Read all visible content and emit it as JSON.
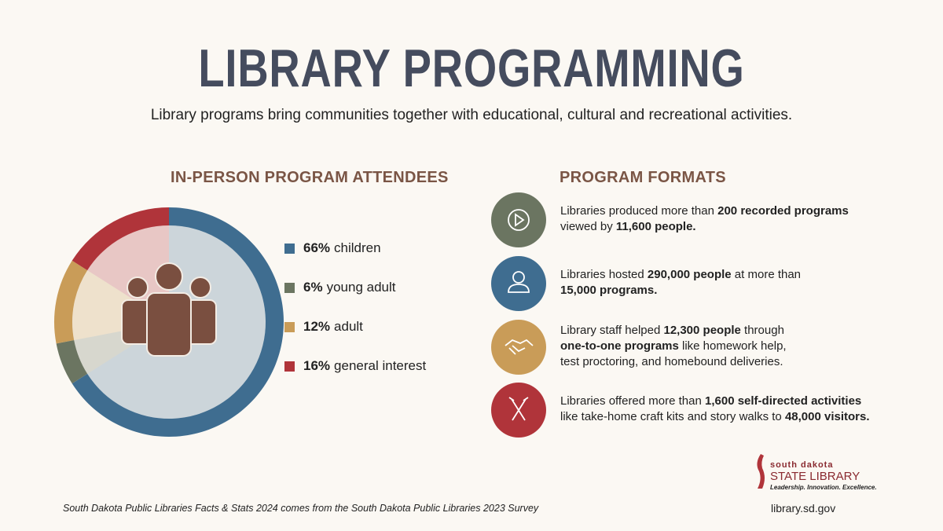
{
  "title": "LIBRARY PROGRAMMING",
  "subtitle": "Library programs bring communities together with educational, cultural and recreational activities.",
  "chart_data": {
    "type": "pie",
    "title": "IN-PERSON PROGRAM ATTENDEES",
    "categories": [
      "children",
      "young adult",
      "adult",
      "general interest"
    ],
    "values": [
      66,
      6,
      12,
      16
    ],
    "value_labels": [
      "66%",
      "6%",
      "12%",
      "16%"
    ],
    "colors": [
      "#3f6d90",
      "#6b7561",
      "#c99c58",
      "#b0343a"
    ]
  },
  "formats": {
    "title": "PROGRAM FORMATS",
    "items": [
      {
        "color": "#6b7561",
        "lines": [
          [
            {
              "text": "Libraries produced more than ",
              "bold": false
            },
            {
              "text": "200 recorded programs",
              "bold": true
            }
          ],
          [
            {
              "text": "viewed by ",
              "bold": false
            },
            {
              "text": "11,600 people.",
              "bold": true
            }
          ]
        ]
      },
      {
        "color": "#3f6d90",
        "lines": [
          [
            {
              "text": "Libraries hosted ",
              "bold": false
            },
            {
              "text": "290,000 people",
              "bold": true
            },
            {
              "text": " at more than",
              "bold": false
            }
          ],
          [
            {
              "text": "15,000 programs.",
              "bold": true
            }
          ]
        ]
      },
      {
        "color": "#c99c58",
        "lines": [
          [
            {
              "text": "Library staff helped ",
              "bold": false
            },
            {
              "text": "12,300 people",
              "bold": true
            },
            {
              "text": " through",
              "bold": false
            }
          ],
          [
            {
              "text": "one-to-one programs",
              "bold": true
            },
            {
              "text": " like homework help,",
              "bold": false
            }
          ],
          [
            {
              "text": "test proctoring, and homebound deliveries.",
              "bold": false
            }
          ]
        ]
      },
      {
        "color": "#b0343a",
        "lines": [
          [
            {
              "text": "Libraries offered more than ",
              "bold": false
            },
            {
              "text": "1,600 self-directed activities",
              "bold": true
            }
          ],
          [
            {
              "text": "like take-home craft kits and story walks to ",
              "bold": false
            },
            {
              "text": "48,000 visitors.",
              "bold": true
            }
          ]
        ]
      }
    ]
  },
  "footer": "South Dakota Public Libraries Facts & Stats 2024 comes from the South Dakota Public Libraries 2023 Survey",
  "logo": {
    "line1": "south dakota",
    "line2": "STATE LIBRARY",
    "tagline": "Leadership. Innovation. Excellence."
  },
  "url": "library.sd.gov"
}
